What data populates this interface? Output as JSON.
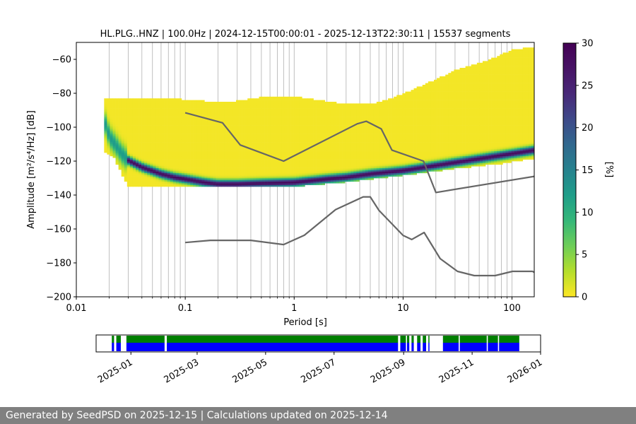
{
  "chart_data": {
    "type": "heatmap",
    "title": "HL.PLG..HNZ | 100.0Hz | 2024-12-15T00:00:01 - 2025-12-13T22:30:11 | 15537 segments",
    "xlabel": "Period [s]",
    "ylabel": "Amplitude [m²/s⁴/Hz] [dB]",
    "x_scale": "log",
    "xlim": [
      0.01,
      160
    ],
    "ylim": [
      -200,
      -50
    ],
    "x_ticks": [
      "0.01",
      "0.1",
      "1",
      "10",
      "100"
    ],
    "y_ticks": [
      -60,
      -80,
      -100,
      -120,
      -140,
      -160,
      -180,
      -200
    ],
    "grid": "vertical",
    "colorbar": {
      "label": "[%]",
      "range": [
        0,
        30
      ],
      "ticks": [
        "0",
        "5",
        "10",
        "15",
        "20",
        "25",
        "30"
      ],
      "colormap": "viridis_r"
    },
    "mode_curve": [
      {
        "period": 0.019,
        "db": -99
      },
      {
        "period": 0.02,
        "db": -106
      },
      {
        "period": 0.023,
        "db": -111
      },
      {
        "period": 0.026,
        "db": -116
      },
      {
        "period": 0.03,
        "db": -120
      },
      {
        "period": 0.04,
        "db": -124
      },
      {
        "period": 0.06,
        "db": -128
      },
      {
        "period": 0.08,
        "db": -130
      },
      {
        "period": 0.1,
        "db": -131
      },
      {
        "period": 0.15,
        "db": -133
      },
      {
        "period": 0.2,
        "db": -134
      },
      {
        "period": 0.3,
        "db": -134
      },
      {
        "period": 0.5,
        "db": -133.5
      },
      {
        "period": 1,
        "db": -133
      },
      {
        "period": 2,
        "db": -131
      },
      {
        "period": 3,
        "db": -130
      },
      {
        "period": 5,
        "db": -128
      },
      {
        "period": 10,
        "db": -126
      },
      {
        "period": 20,
        "db": -123
      },
      {
        "period": 40,
        "db": -120
      },
      {
        "period": 80,
        "db": -117
      },
      {
        "period": 160,
        "db": -114
      }
    ],
    "nhnm": [
      {
        "period": 0.1,
        "db": -91.5
      },
      {
        "period": 0.22,
        "db": -97.4
      },
      {
        "period": 0.32,
        "db": -110.5
      },
      {
        "period": 0.8,
        "db": -120
      },
      {
        "period": 3.8,
        "db": -98
      },
      {
        "period": 4.6,
        "db": -96.5
      },
      {
        "period": 6.3,
        "db": -101
      },
      {
        "period": 7.9,
        "db": -113.5
      },
      {
        "period": 15.4,
        "db": -120
      },
      {
        "period": 20,
        "db": -138.5
      },
      {
        "period": 160,
        "db": -129
      }
    ],
    "nlnm": [
      {
        "period": 0.1,
        "db": -168
      },
      {
        "period": 0.17,
        "db": -166.7
      },
      {
        "period": 0.4,
        "db": -166.7
      },
      {
        "period": 0.8,
        "db": -169.2
      },
      {
        "period": 1.24,
        "db": -163.7
      },
      {
        "period": 2.4,
        "db": -148.6
      },
      {
        "period": 4.3,
        "db": -141.1
      },
      {
        "period": 5,
        "db": -141.1
      },
      {
        "period": 6,
        "db": -149
      },
      {
        "period": 10,
        "db": -163.8
      },
      {
        "period": 12,
        "db": -166.2
      },
      {
        "period": 15.6,
        "db": -162.1
      },
      {
        "period": 21.9,
        "db": -177.5
      },
      {
        "period": 31.6,
        "db": -185
      },
      {
        "period": 45,
        "db": -187.5
      },
      {
        "period": 70,
        "db": -187.5
      },
      {
        "period": 101,
        "db": -185
      },
      {
        "period": 154,
        "db": -185
      },
      {
        "period": 160,
        "db": -185.5
      }
    ],
    "upper_envelope": [
      {
        "period": 0.018,
        "db": -84
      },
      {
        "period": 0.06,
        "db": -84
      },
      {
        "period": 0.15,
        "db": -86
      },
      {
        "period": 0.3,
        "db": -86
      },
      {
        "period": 0.6,
        "db": -83
      },
      {
        "period": 1.2,
        "db": -84
      },
      {
        "period": 2.5,
        "db": -87
      },
      {
        "period": 5,
        "db": -88
      },
      {
        "period": 8,
        "db": -84
      },
      {
        "period": 15,
        "db": -77
      },
      {
        "period": 30,
        "db": -68
      },
      {
        "period": 60,
        "db": -62
      },
      {
        "period": 100,
        "db": -56
      },
      {
        "period": 160,
        "db": -54
      }
    ],
    "lower_envelope": [
      {
        "period": 0.018,
        "db": -114
      },
      {
        "period": 0.022,
        "db": -117
      },
      {
        "period": 0.03,
        "db": -135
      },
      {
        "period": 0.1,
        "db": -135
      },
      {
        "period": 1,
        "db": -134.5
      },
      {
        "period": 3,
        "db": -132
      },
      {
        "period": 10,
        "db": -128
      },
      {
        "period": 30,
        "db": -124
      },
      {
        "period": 80,
        "db": -121
      },
      {
        "period": 160,
        "db": -118
      }
    ]
  },
  "availability": {
    "date_ticks": [
      "2025-01",
      "2025-03",
      "2025-05",
      "2025-07",
      "2025-09",
      "2025-11",
      "2026-01"
    ],
    "range": [
      "2024-12-01",
      "2026-01-01"
    ],
    "bar_colors": {
      "top": "#007f00",
      "bottom": "#0000ff"
    },
    "data_spans": [
      [
        "2024-12-15",
        "2024-12-17"
      ],
      [
        "2024-12-19",
        "2024-12-23"
      ],
      [
        "2024-12-28",
        "2025-01-31"
      ],
      [
        "2025-02-02",
        "2025-08-27"
      ],
      [
        "2025-08-29",
        "2025-09-03"
      ],
      [
        "2025-09-04",
        "2025-09-06"
      ],
      [
        "2025-09-08",
        "2025-09-10"
      ],
      [
        "2025-09-13",
        "2025-09-16"
      ],
      [
        "2025-09-18",
        "2025-09-21"
      ],
      [
        "2025-09-23",
        "2025-09-24"
      ],
      [
        "2025-10-06",
        "2025-10-20"
      ],
      [
        "2025-10-21",
        "2025-11-14"
      ],
      [
        "2025-11-15",
        "2025-11-24"
      ],
      [
        "2025-11-25",
        "2025-12-13"
      ]
    ]
  },
  "footer": {
    "text": "Generated by SeedPSD on 2025-12-15 | Calculations updated on 2025-12-14"
  }
}
